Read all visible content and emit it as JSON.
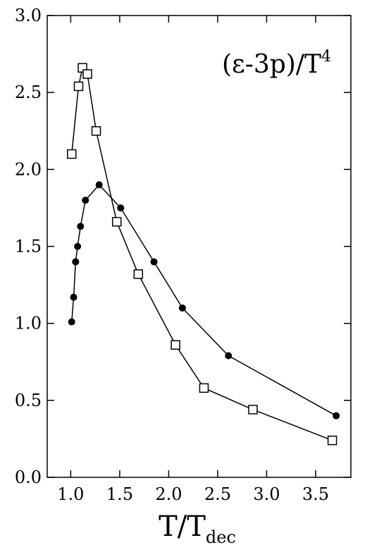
{
  "chart_data": {
    "type": "line",
    "annotation": "(ε-3p)/T",
    "annotation_sup": "4",
    "x_label": "T/T",
    "x_label_sub": "dec",
    "xlim": [
      0.76,
      3.86
    ],
    "xticks": [
      {
        "value": 1.0,
        "label": "1.0"
      },
      {
        "value": 1.5,
        "label": "1.5"
      },
      {
        "value": 2.0,
        "label": "2.0"
      },
      {
        "value": 2.5,
        "label": "2.5"
      },
      {
        "value": 3.0,
        "label": "3.0"
      },
      {
        "value": 3.5,
        "label": "3.5"
      }
    ],
    "ylim": [
      0,
      3
    ],
    "yticks": [
      {
        "value": 0,
        "label": "0.0"
      },
      {
        "value": 0.5,
        "label": "0.5"
      },
      {
        "value": 1.0,
        "label": "1.0"
      },
      {
        "value": 1.5,
        "label": "1.5"
      },
      {
        "value": 2.0,
        "label": "2.0"
      },
      {
        "value": 2.5,
        "label": "2.5"
      },
      {
        "value": 3.0,
        "label": "3.0"
      }
    ],
    "series": [
      {
        "marker": "circle",
        "color": "#000000",
        "x": [
          1.01,
          1.03,
          1.05,
          1.07,
          1.1,
          1.15,
          1.29,
          1.51,
          1.85,
          2.14,
          2.61,
          3.71
        ],
        "values": [
          1.01,
          1.17,
          1.4,
          1.5,
          1.63,
          1.8,
          1.9,
          1.75,
          1.4,
          1.1,
          0.79,
          0.4
        ]
      },
      {
        "marker": "square",
        "color": "#000000",
        "x": [
          1.01,
          1.08,
          1.12,
          1.17,
          1.26,
          1.47,
          1.69,
          2.07,
          2.36,
          2.86,
          3.67
        ],
        "values": [
          2.1,
          2.54,
          2.66,
          2.62,
          2.25,
          1.66,
          1.32,
          0.86,
          0.58,
          0.44,
          0.24
        ]
      }
    ]
  }
}
